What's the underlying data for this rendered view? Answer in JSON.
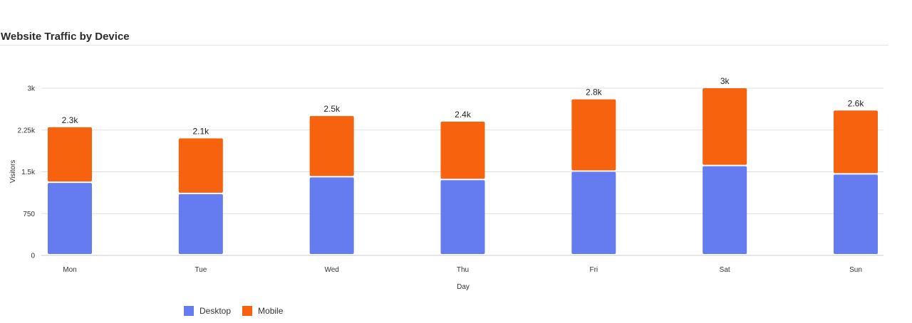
{
  "chart_data": {
    "type": "bar",
    "stacked": true,
    "title": "Website Traffic by Device",
    "xlabel": "Day",
    "ylabel": "Visitors",
    "categories": [
      "Mon",
      "Tue",
      "Wed",
      "Thu",
      "Fri",
      "Sat",
      "Sun"
    ],
    "series": [
      {
        "name": "Desktop",
        "color": "#647cf0",
        "values": [
          1300,
          1100,
          1400,
          1350,
          1500,
          1600,
          1450
        ]
      },
      {
        "name": "Mobile",
        "color": "#f7620f",
        "values": [
          1000,
          1000,
          1100,
          1050,
          1300,
          1400,
          1150
        ]
      }
    ],
    "totals_labels": [
      "2.3k",
      "2.1k",
      "2.5k",
      "2.4k",
      "2.8k",
      "3k",
      "2.6k"
    ],
    "yticks": [
      0,
      750,
      1500,
      2250,
      3000
    ],
    "ytick_labels": [
      "0",
      "750",
      "1.5k",
      "2.25k",
      "3k"
    ],
    "ylim": [
      0,
      3000
    ],
    "grid": true,
    "legend_position": "bottom-left"
  }
}
